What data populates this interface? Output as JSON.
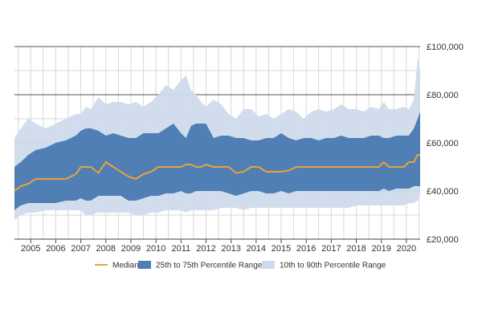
{
  "colors": {
    "median": "#e8a33a",
    "p25_p75": "#4f7fb4",
    "p10_p90": "#cfdbeb",
    "grid": "#d7d7d7",
    "axis": "#444444",
    "text": "#333333"
  },
  "chart_data": {
    "type": "area",
    "title": "",
    "xlabel": "",
    "ylabel": "",
    "xlim": [
      2004.35,
      2020.55
    ],
    "ylim": [
      20000,
      100000
    ],
    "x_ticks": [
      "2005",
      "2006",
      "2007",
      "2008",
      "2009",
      "2010",
      "2011",
      "2012",
      "2013",
      "2014",
      "2015",
      "2016",
      "2017",
      "2018",
      "2019",
      "2020"
    ],
    "y_ticks": [
      "£20,000",
      "£40,000",
      "£60,000",
      "£80,000",
      "£100,000"
    ],
    "grid": true,
    "legend": {
      "position": "bottom",
      "items": [
        {
          "name": "Median",
          "marker": "line",
          "color_key": "median"
        },
        {
          "name": "25th to 75th Percentile Range",
          "marker": "band",
          "color_key": "p25_p75"
        },
        {
          "name": "10th to 90th Percentile Range",
          "marker": "band",
          "color_key": "p10_p90"
        }
      ]
    },
    "x": [
      2004.35,
      2004.6,
      2004.9,
      2005.2,
      2005.6,
      2006.0,
      2006.4,
      2006.8,
      2007.0,
      2007.2,
      2007.4,
      2007.7,
      2008.0,
      2008.3,
      2008.6,
      2008.9,
      2009.2,
      2009.5,
      2009.8,
      2010.1,
      2010.4,
      2010.7,
      2011.0,
      2011.2,
      2011.4,
      2011.6,
      2011.8,
      2012.0,
      2012.3,
      2012.6,
      2012.9,
      2013.2,
      2013.5,
      2013.8,
      2014.1,
      2014.4,
      2014.7,
      2015.0,
      2015.3,
      2015.6,
      2015.9,
      2016.2,
      2016.5,
      2016.8,
      2017.1,
      2017.4,
      2017.7,
      2018.0,
      2018.3,
      2018.6,
      2018.9,
      2019.1,
      2019.3,
      2019.6,
      2019.9,
      2020.1,
      2020.3,
      2020.45,
      2020.55
    ],
    "series": [
      {
        "name": "10th to 90th Percentile Range",
        "lower": [
          28000,
          30000,
          31000,
          31000,
          32000,
          32000,
          32000,
          32000,
          32000,
          30000,
          30000,
          31000,
          31000,
          31000,
          31000,
          31000,
          30000,
          30000,
          31000,
          31000,
          32000,
          32000,
          32000,
          31000,
          32000,
          32000,
          32000,
          32000,
          32000,
          33000,
          33000,
          33000,
          32000,
          33000,
          33000,
          33000,
          33000,
          33000,
          33000,
          33000,
          33000,
          33000,
          33000,
          33000,
          33000,
          33000,
          33000,
          34000,
          34000,
          34000,
          34000,
          34000,
          34000,
          34000,
          34000,
          35000,
          35000,
          36000,
          38000
        ],
        "upper": [
          62000,
          66000,
          70000,
          68000,
          66000,
          68000,
          70000,
          72000,
          72000,
          75000,
          74000,
          79000,
          76000,
          77000,
          77000,
          76000,
          77000,
          75000,
          77000,
          80000,
          84000,
          82000,
          86000,
          88000,
          82000,
          80000,
          77000,
          75000,
          78000,
          76000,
          72000,
          70000,
          74000,
          74000,
          71000,
          72000,
          70000,
          72000,
          74000,
          73000,
          70000,
          73000,
          74000,
          73000,
          74000,
          76000,
          74000,
          74000,
          73000,
          75000,
          74000,
          77000,
          74000,
          74000,
          75000,
          74000,
          78000,
          95000,
          90000
        ]
      },
      {
        "name": "25th to 75th Percentile Range",
        "lower": [
          32000,
          34000,
          35000,
          35000,
          35000,
          35000,
          36000,
          36000,
          37000,
          36000,
          36000,
          38000,
          38000,
          38000,
          38000,
          36000,
          36000,
          37000,
          38000,
          38000,
          39000,
          39000,
          40000,
          39000,
          39000,
          40000,
          40000,
          40000,
          40000,
          40000,
          39000,
          38000,
          39000,
          40000,
          40000,
          39000,
          39000,
          40000,
          39000,
          40000,
          40000,
          40000,
          40000,
          40000,
          40000,
          40000,
          40000,
          40000,
          40000,
          40000,
          40000,
          41000,
          40000,
          41000,
          41000,
          41000,
          42000,
          42000,
          42000
        ],
        "upper": [
          50000,
          52000,
          55000,
          57000,
          58000,
          60000,
          61000,
          63000,
          65000,
          66000,
          66000,
          65000,
          63000,
          64000,
          63000,
          62000,
          62000,
          64000,
          64000,
          64000,
          66000,
          68000,
          64000,
          62000,
          67000,
          68000,
          68000,
          68000,
          62000,
          63000,
          63000,
          62000,
          62000,
          61000,
          61000,
          62000,
          62000,
          64000,
          62000,
          61000,
          62000,
          62000,
          61000,
          62000,
          62000,
          63000,
          62000,
          62000,
          62000,
          63000,
          63000,
          62000,
          62000,
          63000,
          63000,
          63000,
          66000,
          70000,
          73000
        ]
      },
      {
        "name": "Median",
        "values": [
          40000,
          42000,
          43000,
          45000,
          45000,
          45000,
          45000,
          47000,
          50000,
          50000,
          50000,
          47500,
          52000,
          50000,
          48000,
          46000,
          45000,
          47000,
          48000,
          50000,
          50000,
          50000,
          50000,
          51000,
          51000,
          50000,
          50000,
          51000,
          50000,
          50000,
          50000,
          47500,
          48000,
          50000,
          50000,
          48000,
          48000,
          48000,
          48500,
          50000,
          50000,
          50000,
          50000,
          50000,
          50000,
          50000,
          50000,
          50000,
          50000,
          50000,
          50000,
          52000,
          50000,
          50000,
          50000,
          52000,
          52000,
          55000,
          55000
        ]
      }
    ]
  }
}
